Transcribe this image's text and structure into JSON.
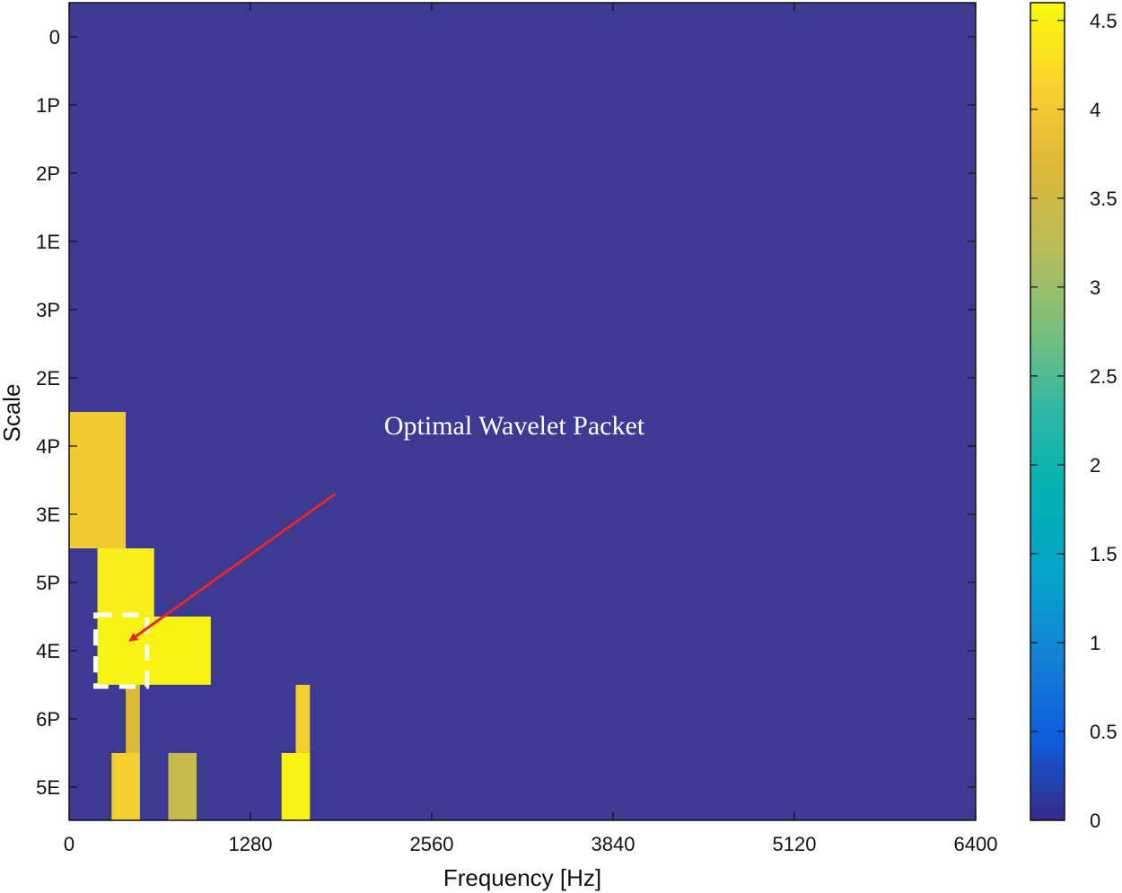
{
  "chart_data": {
    "type": "heatmap",
    "xlabel": "Frequency [Hz]",
    "ylabel": "Scale",
    "xlim": [
      0,
      6400
    ],
    "x_ticks": [
      "0",
      "1280",
      "2560",
      "3840",
      "5120",
      "6400"
    ],
    "y_ticks": [
      "0",
      "1P",
      "2P",
      "1E",
      "3P",
      "2E",
      "4P",
      "3E",
      "5P",
      "4E",
      "6P",
      "5E"
    ],
    "background_value": 0,
    "colorbar": {
      "range": [
        0,
        4.6
      ],
      "ticks": [
        "0",
        "0.5",
        "1",
        "1.5",
        "2",
        "2.5",
        "3",
        "3.5",
        "4",
        "4.5"
      ]
    },
    "cells": [
      {
        "x": [
          0,
          400
        ],
        "rows": [
          "4P",
          "3E"
        ],
        "value": 4.0
      },
      {
        "x": [
          200,
          600
        ],
        "rows": [
          "5P"
        ],
        "value": 4.45
      },
      {
        "x": [
          200,
          1000
        ],
        "rows": [
          "4E"
        ],
        "value": 4.5
      },
      {
        "x": [
          400,
          500
        ],
        "rows": [
          "6P"
        ],
        "value": 3.7
      },
      {
        "x": [
          300,
          500
        ],
        "rows": [
          "5E"
        ],
        "value": 4.05
      },
      {
        "x": [
          700,
          900
        ],
        "rows": [
          "5E"
        ],
        "value": 3.4
      },
      {
        "x": [
          1600,
          1700
        ],
        "rows": [
          "6P"
        ],
        "value": 4.05
      },
      {
        "x": [
          1500,
          1700
        ],
        "rows": [
          "5E"
        ],
        "value": 4.5
      }
    ],
    "highlight": {
      "x": [
        200,
        600
      ],
      "row": "4E",
      "style": "dashed-white-box"
    },
    "annotation": {
      "text": "Optimal Wavelet Packet",
      "arrow_color": "#e8262a",
      "arrow_from": {
        "x": 1880,
        "row_pos": 6.7
      },
      "arrow_to": {
        "x": 430,
        "row_pos": 8.85
      }
    },
    "colormap": "parula",
    "colors": {
      "background": "#3d3a94",
      "frame": "#111111",
      "annotation_text": "#ffffff"
    }
  }
}
